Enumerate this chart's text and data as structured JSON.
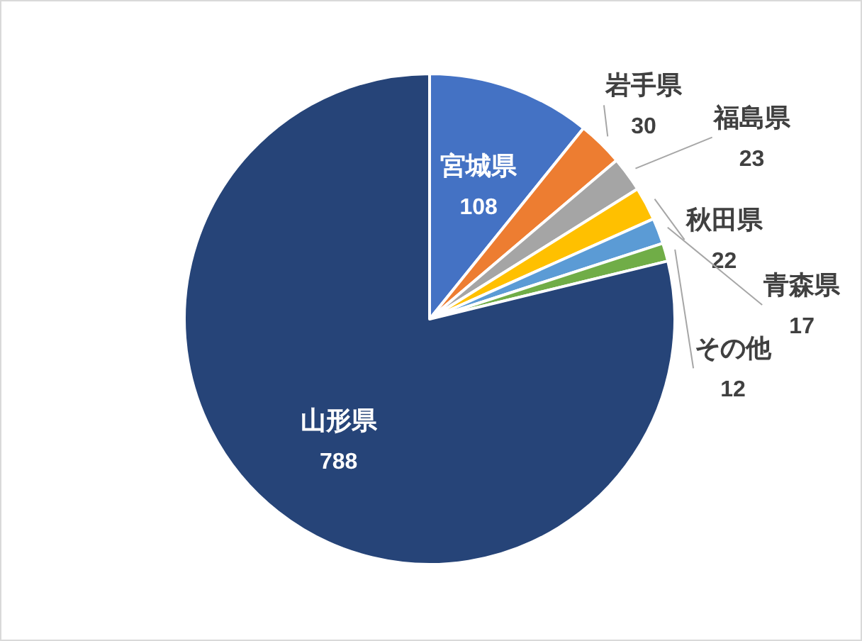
{
  "chart_data": {
    "type": "pie",
    "categories": [
      "宮城県",
      "岩手県",
      "福島県",
      "秋田県",
      "青森県",
      "その他",
      "山形県"
    ],
    "values": [
      108,
      30,
      23,
      22,
      17,
      12,
      788
    ],
    "colors": [
      "#4472c4",
      "#ed7d31",
      "#a5a5a5",
      "#ffc000",
      "#5b9bd5",
      "#70ad47",
      "#264478"
    ],
    "data_labels": true
  }
}
